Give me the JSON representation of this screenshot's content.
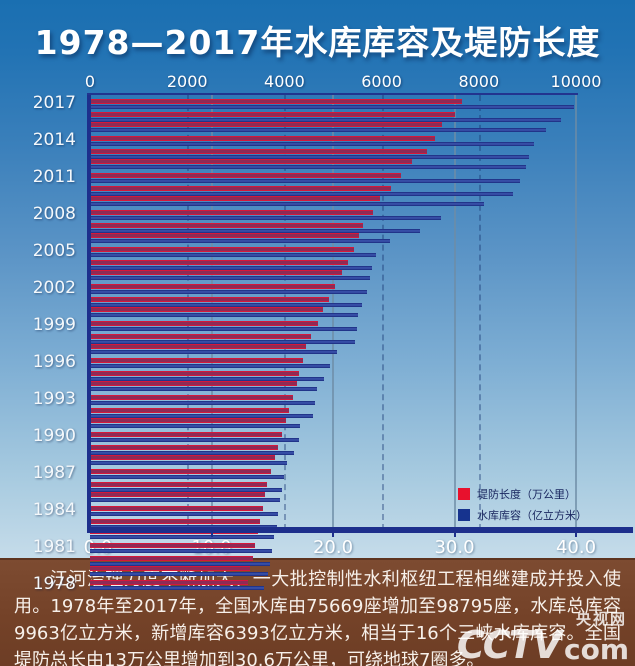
{
  "title": "1978—2017年水库库容及堤防长度",
  "chart_data": {
    "type": "bar",
    "orientation": "horizontal",
    "categories": [
      "1978",
      "1979",
      "1980",
      "1981",
      "1982",
      "1983",
      "1984",
      "1985",
      "1986",
      "1987",
      "1988",
      "1989",
      "1990",
      "1991",
      "1992",
      "1993",
      "1994",
      "1995",
      "1996",
      "1997",
      "1998",
      "1999",
      "2000",
      "2001",
      "2002",
      "2003",
      "2004",
      "2005",
      "2006",
      "2007",
      "2008",
      "2009",
      "2010",
      "2011",
      "2012",
      "2013",
      "2014",
      "2015",
      "2016",
      "2017"
    ],
    "category_label_step": 3,
    "series": [
      {
        "name": "堤防长度（万公里）",
        "axis": "bottom",
        "swatch_color": "#e8112d",
        "values": [
          13.0,
          13.2,
          13.4,
          13.6,
          13.8,
          14.0,
          14.2,
          14.4,
          14.6,
          14.9,
          15.2,
          15.5,
          15.8,
          16.1,
          16.4,
          16.7,
          17.0,
          17.2,
          17.5,
          17.8,
          18.2,
          18.8,
          19.2,
          19.7,
          20.2,
          20.7,
          21.2,
          21.7,
          22.1,
          22.5,
          23.3,
          23.9,
          24.8,
          25.6,
          26.5,
          27.7,
          28.4,
          29.0,
          30.0,
          30.6
        ]
      },
      {
        "name": "水库库容（亿立方米）",
        "axis": "top",
        "swatch_color": "#16338e",
        "values": [
          3570,
          3660,
          3700,
          3740,
          3790,
          3840,
          3870,
          3910,
          3950,
          4000,
          4060,
          4200,
          4310,
          4330,
          4580,
          4620,
          4670,
          4820,
          4930,
          5090,
          5460,
          5490,
          5520,
          5600,
          5700,
          5770,
          5810,
          5890,
          6180,
          6780,
          7230,
          8110,
          8710,
          8850,
          8970,
          9030,
          9140,
          9380,
          9690,
          9963
        ]
      }
    ],
    "top_axis": {
      "min": 0,
      "max": 10000,
      "tick_labels": [
        "0",
        "2000",
        "4000",
        "6000",
        "8000",
        "10000"
      ],
      "tick_values": [
        0,
        2000,
        4000,
        6000,
        8000,
        10000
      ],
      "grid_values": [
        2000,
        4000,
        6000,
        8000
      ],
      "grid_style": "dashed"
    },
    "bottom_axis": {
      "min": 0,
      "max": 40,
      "tick_labels": [
        "0.0",
        "10.0",
        "20.0",
        "30.0",
        "40.0"
      ],
      "tick_values": [
        0,
        10,
        20,
        30,
        40
      ],
      "grid_values": [
        10,
        20,
        30,
        40
      ],
      "grid_style": "solid"
    },
    "legend_position": "inside-bottom-right",
    "grid": true
  },
  "legend": {
    "items": [
      {
        "label": "堤防长度（万公里）",
        "color": "#e8112d"
      },
      {
        "label": "水库库容（亿立方米）",
        "color": "#16338e"
      }
    ]
  },
  "caption": "江河治理力度不断加大，一大批控制性水利枢纽工程相继建成并投入使用。1978年至2017年，全国水库由75669座增加至98795座，水库总库容9963亿立方米，新增库容6393亿立方米，相当于16个三峡水库库容。全国堤防总长由13万公里增加到30.6万公里，可绕地球7圈多。",
  "watermark": {
    "brand": "CCTV",
    "suffix": "com",
    "cn": "央视网"
  },
  "colors": {
    "background_top": "#1a6fb1",
    "background_bottom": "#d2e4ee",
    "spine": "#1d2f8c",
    "bar_dike_fill": "#8e2b56",
    "bar_dike_edge": "#d6173a",
    "bar_reservoir": "#2a3e96",
    "caption_band": "#744228",
    "text": "#ffffff"
  }
}
